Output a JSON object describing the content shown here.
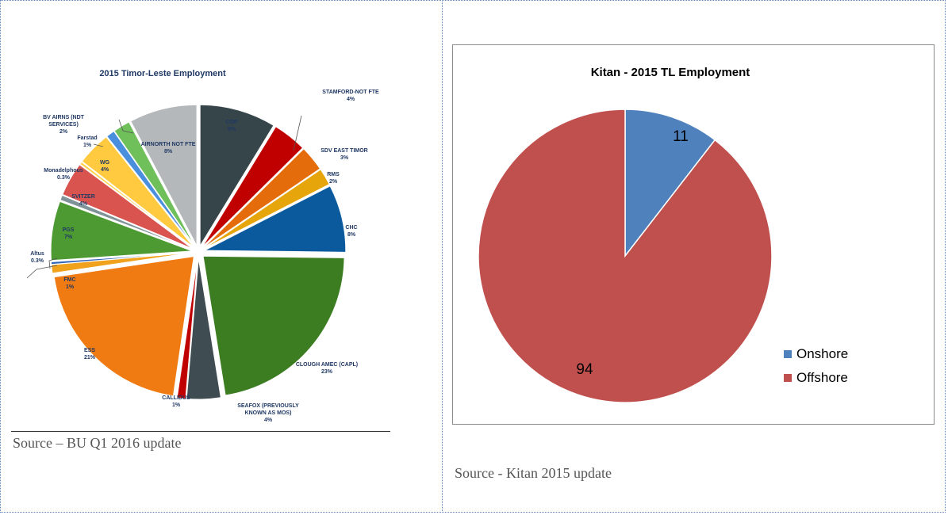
{
  "chart_data": [
    {
      "type": "pie",
      "title": "2015 Timor-Leste Employment",
      "slices": [
        {
          "name": "COP",
          "value": 9,
          "label": "9%",
          "color": "#36454a"
        },
        {
          "name": "",
          "value": 4,
          "label": "",
          "color": "#c00000"
        },
        {
          "name": "SDV EAST TIMOR",
          "value": 3,
          "label": "3%",
          "color": "#e46c0a"
        },
        {
          "name": "RMS",
          "value": 2,
          "label": "2%",
          "color": "#e5a50b"
        },
        {
          "name": "CHC",
          "value": 8,
          "label": "8%",
          "color": "#0c5a9e"
        },
        {
          "name": "CLOUGH AMEC (CAPL)",
          "value": 23,
          "label": "23%",
          "color": "#3d7d22"
        },
        {
          "name": "SEAFOX (PREVIOUSLY KNOWN AS MOS)",
          "value": 4,
          "label": "4%",
          "color": "#3f4c52"
        },
        {
          "name": "CALLIDUS",
          "value": 1,
          "label": "1%",
          "color": "#c00000"
        },
        {
          "name": "ESS",
          "value": 21,
          "label": "21%",
          "color": "#f07b12"
        },
        {
          "name": "FMC",
          "value": 1,
          "label": "1%",
          "color": "#f0a21c"
        },
        {
          "name": "Altus",
          "value": 0.3,
          "label": "0.3%",
          "color": "#2f64b6"
        },
        {
          "name": "PGS",
          "value": 7,
          "label": "7%",
          "color": "#4e9a32"
        },
        {
          "name": "",
          "value": 0.6,
          "label": "",
          "color": "#7f9398"
        },
        {
          "name": "SVITZER",
          "value": 4,
          "label": "4%",
          "color": "#d9534f"
        },
        {
          "name": "Monadelphous",
          "value": 0.3,
          "label": "0.3%",
          "color": "#ffd24a"
        },
        {
          "name": "WG",
          "value": 4,
          "label": "4%",
          "color": "#ffc940"
        },
        {
          "name": "Farstad",
          "value": 1,
          "label": "1%",
          "color": "#4a8ede"
        },
        {
          "name": "BV AIRNS (NDT SERVICES)",
          "value": 2,
          "label": "2%",
          "color": "#6fbf5a"
        },
        {
          "name": "AIRNORTH NOT FTE",
          "value": 8,
          "label": "8%",
          "color": "#b4b8ba"
        }
      ],
      "annotations": [
        {
          "name": "STAMFORD-NOT FTE",
          "label": "4%"
        }
      ]
    },
    {
      "type": "pie",
      "title": "Kitan - 2015 TL Employment",
      "categories": [
        "Onshore",
        "Offshore"
      ],
      "values": [
        11,
        94
      ],
      "colors": [
        "#4f81bd",
        "#c0504d"
      ],
      "legend": "right"
    }
  ],
  "captions": {
    "left": "Source – BU Q1 2016 update",
    "right": "Source - Kitan 2015 update"
  }
}
